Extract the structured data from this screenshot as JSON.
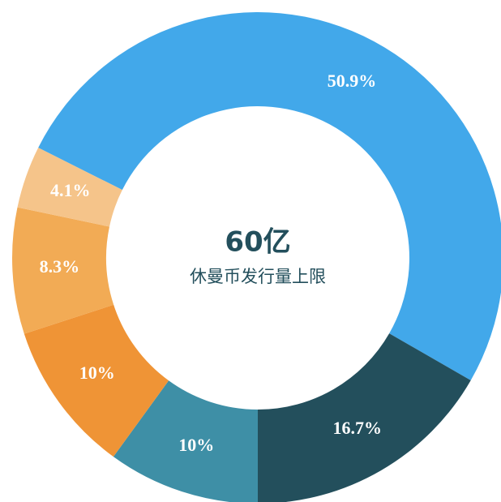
{
  "chart_data": {
    "type": "donut",
    "center_title": "60亿",
    "center_subtitle": "休曼币发行量上限",
    "categories": [
      null,
      null,
      null,
      null,
      null,
      null
    ],
    "values": [
      50.9,
      16.7,
      10,
      10,
      8.3,
      4.1
    ],
    "value_labels": [
      "50.9%",
      "16.7%",
      "10%",
      "10%",
      "8.3%",
      "4.1%"
    ],
    "colors": [
      "#42a8ea",
      "#234f5c",
      "#3e8fa6",
      "#ef9436",
      "#f2ab55",
      "#f5c48a"
    ]
  }
}
